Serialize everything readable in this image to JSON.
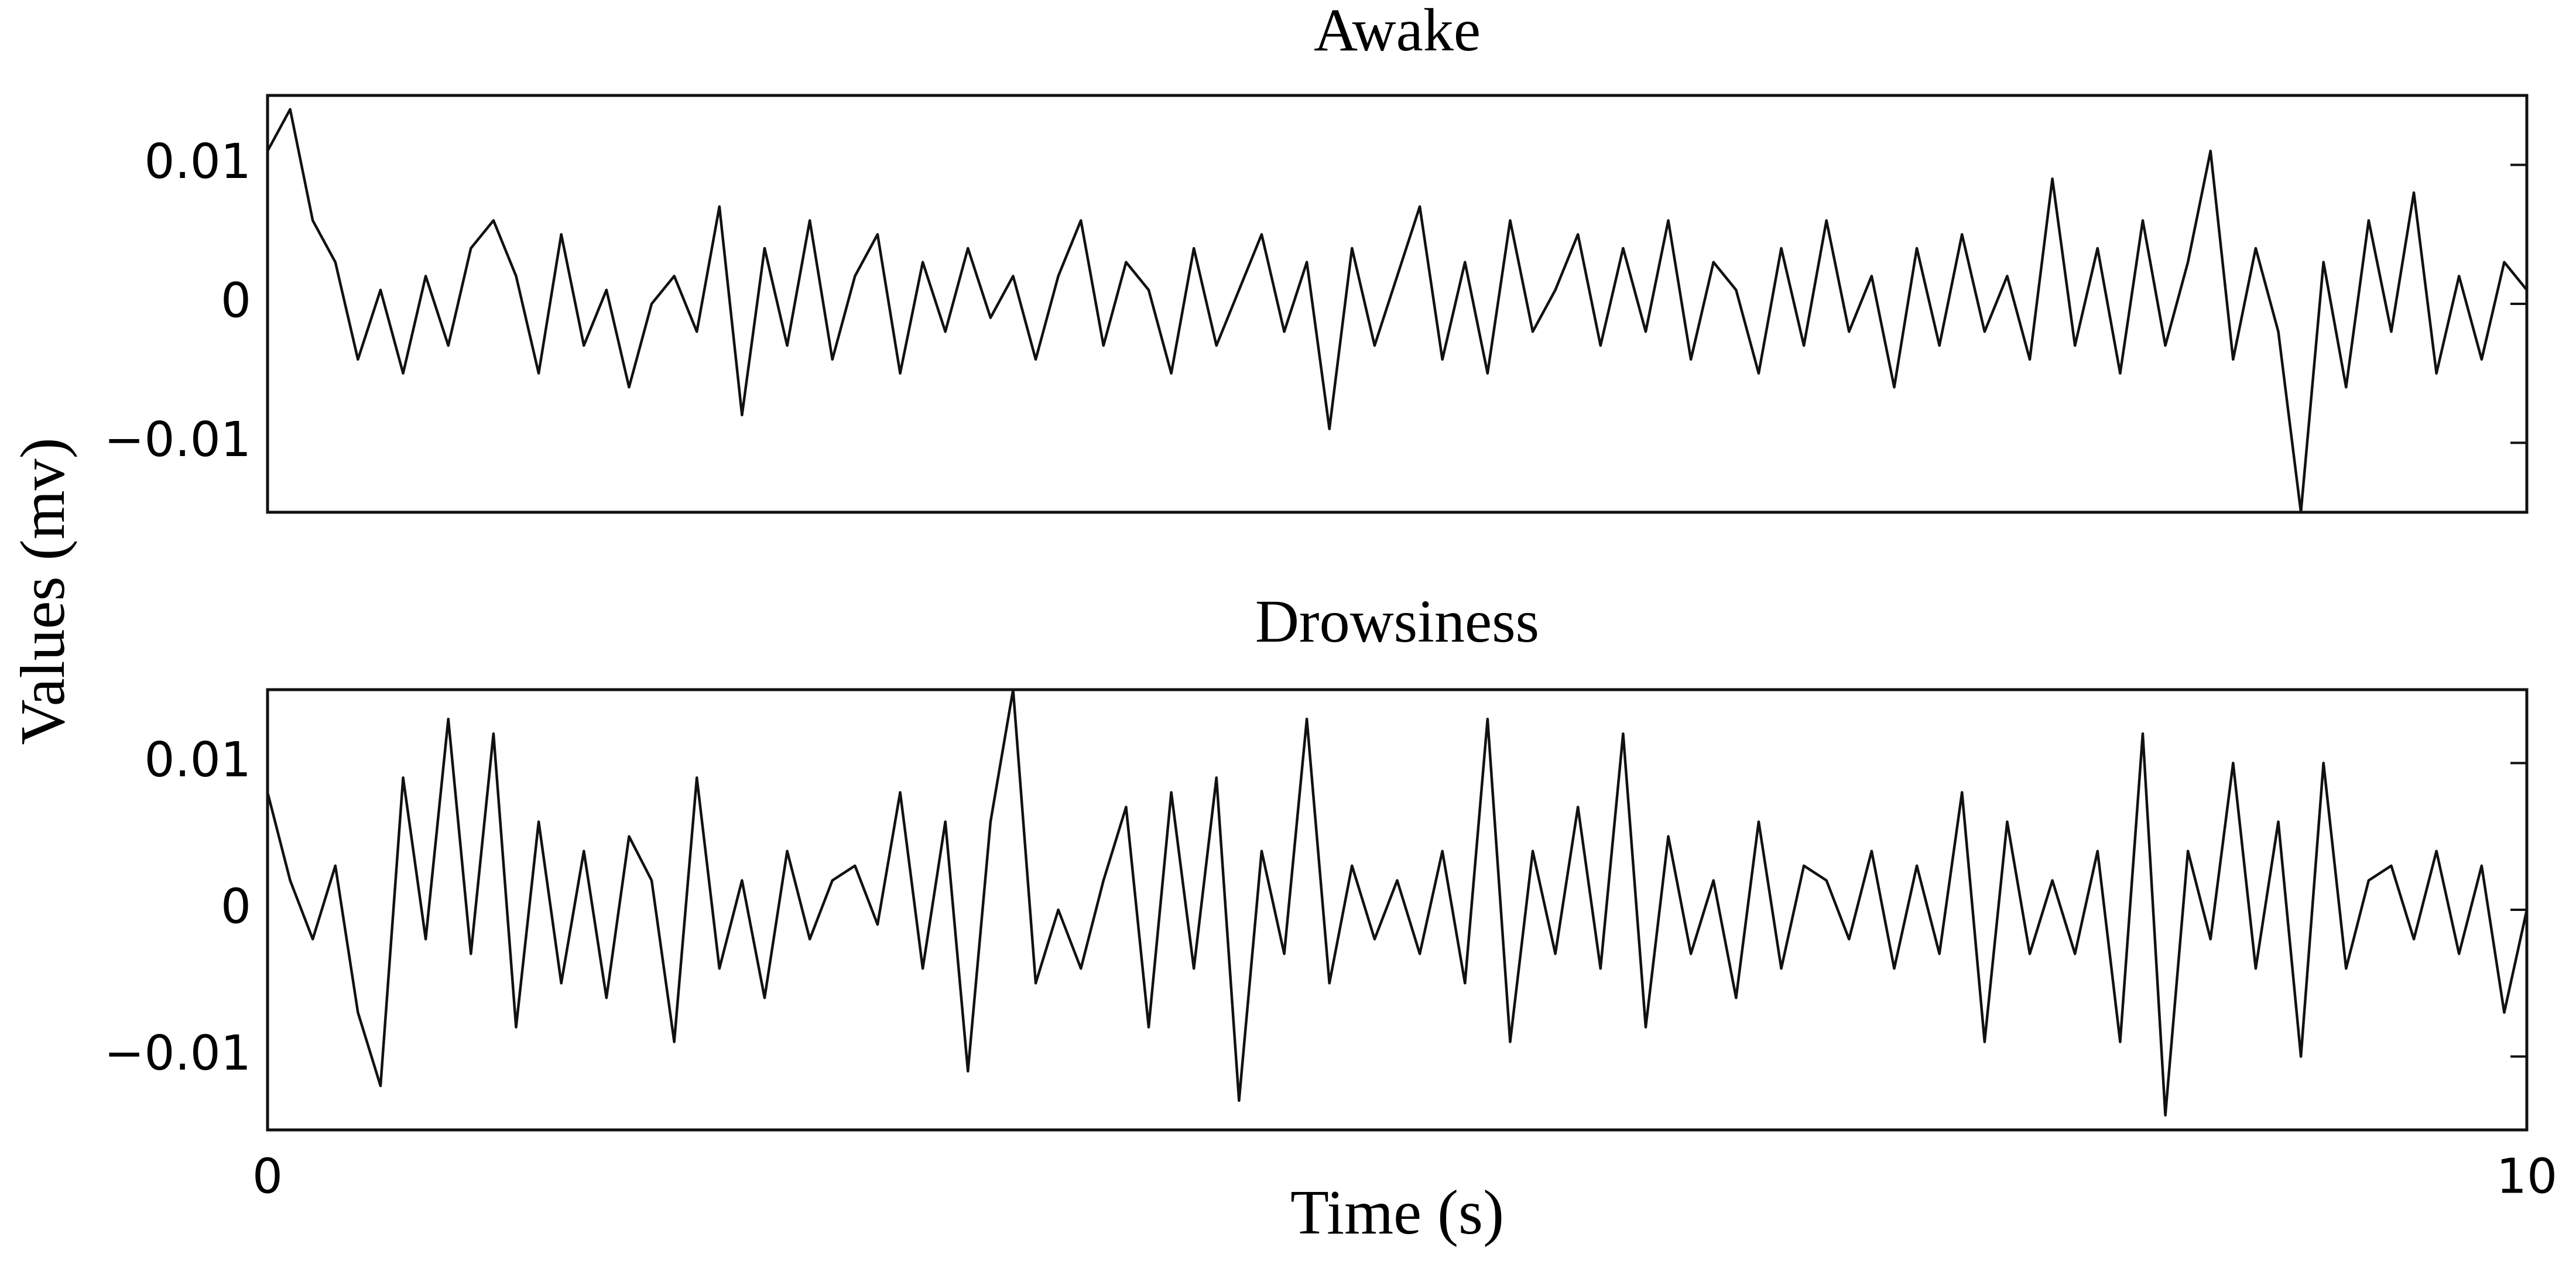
{
  "y_label": "Values (mv)",
  "chart_data": [
    {
      "type": "line",
      "title": "Awake",
      "color": "#111111",
      "xlim": [
        0,
        10
      ],
      "ylim": [
        -0.015,
        0.015
      ],
      "yticks": [
        {
          "value": -0.01,
          "label": "−0.01"
        },
        0,
        0.01
      ],
      "x": [
        0,
        0.1,
        0.2,
        0.3,
        0.4,
        0.5,
        0.6,
        0.7,
        0.8,
        0.9,
        1,
        1.1,
        1.2,
        1.3,
        1.4,
        1.5,
        1.6,
        1.7,
        1.8,
        1.9,
        2,
        2.1,
        2.2,
        2.3,
        2.4,
        2.5,
        2.6,
        2.7,
        2.8,
        2.9,
        3,
        3.1,
        3.2,
        3.3,
        3.4,
        3.5,
        3.6,
        3.7,
        3.8,
        3.9,
        4,
        4.1,
        4.2,
        4.3,
        4.4,
        4.5,
        4.6,
        4.7,
        4.8,
        4.9,
        5,
        5.1,
        5.2,
        5.3,
        5.4,
        5.5,
        5.6,
        5.7,
        5.8,
        5.9,
        6,
        6.1,
        6.2,
        6.3,
        6.4,
        6.5,
        6.6,
        6.7,
        6.8,
        6.9,
        7,
        7.1,
        7.2,
        7.3,
        7.4,
        7.5,
        7.6,
        7.7,
        7.8,
        7.9,
        8,
        8.1,
        8.2,
        8.3,
        8.4,
        8.5,
        8.6,
        8.7,
        8.8,
        8.9,
        9,
        9.1,
        9.2,
        9.3,
        9.4,
        9.5,
        9.6,
        9.7,
        9.8,
        9.9,
        10
      ],
      "values": [
        0.011,
        0.014,
        0.006,
        0.003,
        -0.004,
        0.001,
        -0.005,
        0.002,
        -0.003,
        0.004,
        0.006,
        0.002,
        -0.005,
        0.005,
        -0.003,
        0.001,
        -0.006,
        0,
        0.002,
        -0.002,
        0.007,
        -0.008,
        0.004,
        -0.003,
        0.006,
        -0.004,
        0.002,
        0.005,
        -0.005,
        0.003,
        -0.002,
        0.004,
        -0.001,
        0.002,
        -0.004,
        0.002,
        0.006,
        -0.003,
        0.003,
        0.001,
        -0.005,
        0.004,
        -0.003,
        0.001,
        0.005,
        -0.002,
        0.003,
        -0.009,
        0.004,
        -0.003,
        0.002,
        0.007,
        -0.004,
        0.003,
        -0.005,
        0.006,
        -0.002,
        0.001,
        0.005,
        -0.003,
        0.004,
        -0.002,
        0.006,
        -0.004,
        0.003,
        0.001,
        -0.005,
        0.004,
        -0.003,
        0.006,
        -0.002,
        0.002,
        -0.006,
        0.004,
        -0.003,
        0.005,
        -0.002,
        0.002,
        -0.004,
        0.009,
        -0.003,
        0.004,
        -0.005,
        0.006,
        -0.003,
        0.003,
        0.011,
        -0.004,
        0.004,
        -0.002,
        -0.015,
        0.003,
        -0.006,
        0.006,
        -0.002,
        0.008,
        -0.005,
        0.002,
        -0.004,
        0.003,
        0.001
      ]
    },
    {
      "type": "line",
      "title": "Drowsiness",
      "color": "#111111",
      "xlim": [
        0,
        10
      ],
      "ylim": [
        -0.015,
        0.015
      ],
      "yticks": [
        {
          "value": -0.01,
          "label": "−0.01"
        },
        0,
        0.01
      ],
      "xticks": [
        0,
        10
      ],
      "x_label": "Time (s)",
      "x": [
        0,
        0.1,
        0.2,
        0.3,
        0.4,
        0.5,
        0.6,
        0.7,
        0.8,
        0.9,
        1,
        1.1,
        1.2,
        1.3,
        1.4,
        1.5,
        1.6,
        1.7,
        1.8,
        1.9,
        2,
        2.1,
        2.2,
        2.3,
        2.4,
        2.5,
        2.6,
        2.7,
        2.8,
        2.9,
        3,
        3.1,
        3.2,
        3.3,
        3.4,
        3.5,
        3.6,
        3.7,
        3.8,
        3.9,
        4,
        4.1,
        4.2,
        4.3,
        4.4,
        4.5,
        4.6,
        4.7,
        4.8,
        4.9,
        5,
        5.1,
        5.2,
        5.3,
        5.4,
        5.5,
        5.6,
        5.7,
        5.8,
        5.9,
        6,
        6.1,
        6.2,
        6.3,
        6.4,
        6.5,
        6.6,
        6.7,
        6.8,
        6.9,
        7,
        7.1,
        7.2,
        7.3,
        7.4,
        7.5,
        7.6,
        7.7,
        7.8,
        7.9,
        8,
        8.1,
        8.2,
        8.3,
        8.4,
        8.5,
        8.6,
        8.7,
        8.8,
        8.9,
        9,
        9.1,
        9.2,
        9.3,
        9.4,
        9.5,
        9.6,
        9.7,
        9.8,
        9.9,
        10
      ],
      "values": [
        0.008,
        0.002,
        -0.002,
        0.003,
        -0.007,
        -0.012,
        0.009,
        -0.002,
        0.013,
        -0.003,
        0.012,
        -0.008,
        0.006,
        -0.005,
        0.004,
        -0.006,
        0.005,
        0.002,
        -0.009,
        0.009,
        -0.004,
        0.002,
        -0.006,
        0.004,
        -0.002,
        0.002,
        0.003,
        -0.001,
        0.008,
        -0.004,
        0.006,
        -0.011,
        0.006,
        0.015,
        -0.005,
        0,
        -0.004,
        0.002,
        0.007,
        -0.008,
        0.008,
        -0.004,
        0.009,
        -0.013,
        0.004,
        -0.003,
        0.013,
        -0.005,
        0.003,
        -0.002,
        0.002,
        -0.003,
        0.004,
        -0.005,
        0.013,
        -0.009,
        0.004,
        -0.003,
        0.007,
        -0.004,
        0.012,
        -0.008,
        0.005,
        -0.003,
        0.002,
        -0.006,
        0.006,
        -0.004,
        0.003,
        0.002,
        -0.002,
        0.004,
        -0.004,
        0.003,
        -0.003,
        0.008,
        -0.009,
        0.006,
        -0.003,
        0.002,
        -0.003,
        0.004,
        -0.009,
        0.012,
        -0.014,
        0.004,
        -0.002,
        0.01,
        -0.004,
        0.006,
        -0.01,
        0.01,
        -0.004,
        0.002,
        0.003,
        -0.002,
        0.004,
        -0.003,
        0.003,
        -0.007,
        0
      ]
    }
  ]
}
